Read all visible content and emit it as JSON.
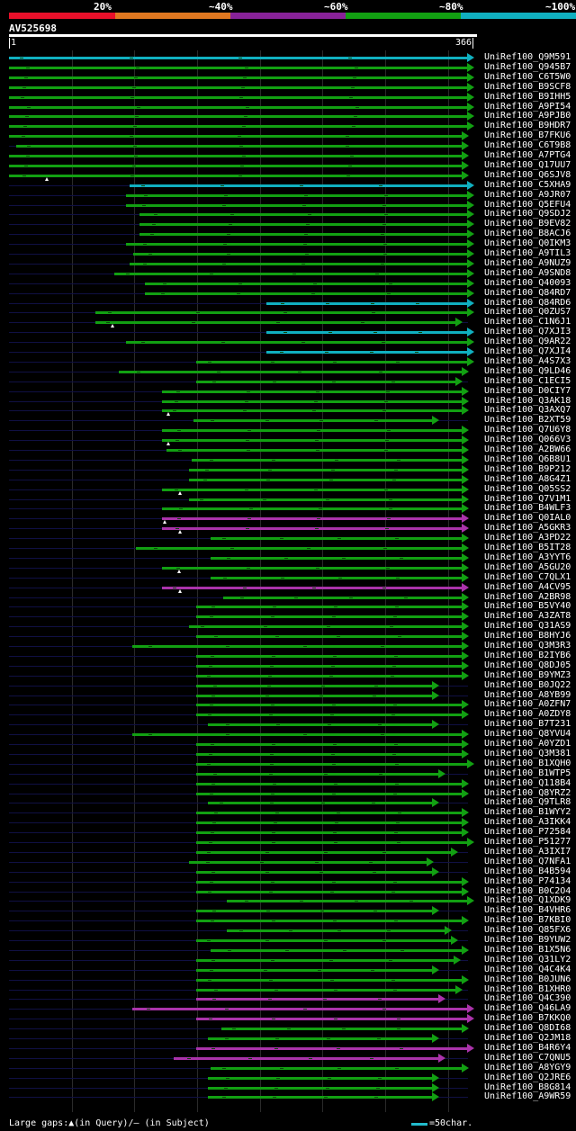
{
  "legend": [
    {
      "label": "20%",
      "color": "#e8102a"
    },
    {
      "label": "~40%",
      "color": "#e07820"
    },
    {
      "label": "~60%",
      "color": "#882299"
    },
    {
      "label": "~80%",
      "color": "#12a012"
    },
    {
      "label": "~100%",
      "color": "#10b0c0"
    }
  ],
  "query": {
    "name": "AV525698",
    "start": "1",
    "end": "366",
    "length": 366
  },
  "footer": {
    "gaps_text": "Large gaps:▲(in Query)/– (in Subject)",
    "scale_text": "=50char."
  },
  "colors": {
    "green": "#12a012",
    "cyan": "#10b0c0",
    "purple": "#aa33aa",
    "guide": "#101044"
  },
  "hits": [
    {
      "label": "UniRef100_Q9M591",
      "start": 1,
      "end": 366,
      "color": "cyan"
    },
    {
      "label": "UniRef100_Q945B7",
      "start": 1,
      "end": 366,
      "color": "green"
    },
    {
      "label": "UniRef100_C6T5W0",
      "start": 1,
      "end": 366,
      "color": "green"
    },
    {
      "label": "UniRef100_B9SCF8",
      "start": 1,
      "end": 366,
      "color": "green"
    },
    {
      "label": "UniRef100_B9IHH5",
      "start": 1,
      "end": 366,
      "color": "green"
    },
    {
      "label": "UniRef100_A9PI54",
      "start": 1,
      "end": 366,
      "color": "green"
    },
    {
      "label": "UniRef100_A9PJB0",
      "start": 1,
      "end": 366,
      "color": "green"
    },
    {
      "label": "UniRef100_B9HDR7",
      "start": 1,
      "end": 366,
      "color": "green"
    },
    {
      "label": "UniRef100_B7FKU6",
      "start": 1,
      "end": 362,
      "color": "green"
    },
    {
      "label": "UniRef100_C6T9B8",
      "start": 7,
      "end": 362,
      "color": "green"
    },
    {
      "label": "UniRef100_A7PTG4",
      "start": 1,
      "end": 362,
      "color": "green"
    },
    {
      "label": "UniRef100_Q17UU7",
      "start": 1,
      "end": 362,
      "color": "green"
    },
    {
      "label": "UniRef100_Q6SJV8",
      "start": 1,
      "end": 362,
      "color": "green",
      "gap": 31
    },
    {
      "label": "UniRef100_C5XHA9",
      "start": 97,
      "end": 366,
      "color": "cyan"
    },
    {
      "label": "UniRef100_A9JR07",
      "start": 94,
      "end": 366,
      "color": "green"
    },
    {
      "label": "UniRef100_Q5EFU4",
      "start": 94,
      "end": 366,
      "color": "green"
    },
    {
      "label": "UniRef100_Q9SDJ2",
      "start": 105,
      "end": 366,
      "color": "green"
    },
    {
      "label": "UniRef100_B9EV82",
      "start": 105,
      "end": 366,
      "color": "green"
    },
    {
      "label": "UniRef100_B8ACJ6",
      "start": 105,
      "end": 366,
      "color": "green"
    },
    {
      "label": "UniRef100_Q0IKM3",
      "start": 94,
      "end": 366,
      "color": "green"
    },
    {
      "label": "UniRef100_A9TIL3",
      "start": 100,
      "end": 366,
      "color": "green"
    },
    {
      "label": "UniRef100_A9NUZ9",
      "start": 97,
      "end": 366,
      "color": "green"
    },
    {
      "label": "UniRef100_A9SND8",
      "start": 85,
      "end": 366,
      "color": "green"
    },
    {
      "label": "UniRef100_Q40093",
      "start": 109,
      "end": 366,
      "color": "green"
    },
    {
      "label": "UniRef100_Q84RD7",
      "start": 109,
      "end": 366,
      "color": "green"
    },
    {
      "label": "UniRef100_Q84RD6",
      "start": 206,
      "end": 366,
      "color": "cyan"
    },
    {
      "label": "UniRef100_Q0ZUS7",
      "start": 70,
      "end": 366,
      "color": "green"
    },
    {
      "label": "UniRef100_C1N6J1",
      "start": 70,
      "end": 357,
      "color": "green",
      "gap": 83
    },
    {
      "label": "UniRef100_Q7XJI3",
      "start": 206,
      "end": 366,
      "color": "cyan"
    },
    {
      "label": "UniRef100_Q9AR22",
      "start": 94,
      "end": 366,
      "color": "green"
    },
    {
      "label": "UniRef100_Q7XJI4",
      "start": 206,
      "end": 366,
      "color": "cyan"
    },
    {
      "label": "UniRef100_A4S7X3",
      "start": 150,
      "end": 366,
      "color": "green"
    },
    {
      "label": "UniRef100_Q9LD46",
      "start": 88,
      "end": 362,
      "color": "green"
    },
    {
      "label": "UniRef100_C1ECI5",
      "start": 150,
      "end": 357,
      "color": "green"
    },
    {
      "label": "UniRef100_D0CIY7",
      "start": 123,
      "end": 362,
      "color": "green"
    },
    {
      "label": "UniRef100_Q3AK18",
      "start": 123,
      "end": 362,
      "color": "green"
    },
    {
      "label": "UniRef100_Q3AXQ7",
      "start": 123,
      "end": 362,
      "color": "green",
      "gap": 128
    },
    {
      "label": "UniRef100_B2XT59",
      "start": 148,
      "end": 338,
      "color": "green"
    },
    {
      "label": "UniRef100_Q7U6Y8",
      "start": 123,
      "end": 362,
      "color": "green"
    },
    {
      "label": "UniRef100_Q066V3",
      "start": 123,
      "end": 362,
      "color": "green",
      "gap": 128
    },
    {
      "label": "UniRef100_A2BW66",
      "start": 126,
      "end": 362,
      "color": "green"
    },
    {
      "label": "UniRef100_Q6B8U1",
      "start": 146,
      "end": 362,
      "color": "green"
    },
    {
      "label": "UniRef100_B9P212",
      "start": 144,
      "end": 362,
      "color": "green"
    },
    {
      "label": "UniRef100_A8G4Z1",
      "start": 144,
      "end": 362,
      "color": "green"
    },
    {
      "label": "UniRef100_Q05SS2",
      "start": 123,
      "end": 362,
      "color": "green",
      "gap": 137
    },
    {
      "label": "UniRef100_Q7V1M1",
      "start": 144,
      "end": 362,
      "color": "green"
    },
    {
      "label": "UniRef100_B4WLF3",
      "start": 123,
      "end": 362,
      "color": "green"
    },
    {
      "label": "UniRef100_Q0IAL0",
      "start": 123,
      "end": 362,
      "color": "purple",
      "gap": 125
    },
    {
      "label": "UniRef100_A5GKR3",
      "start": 123,
      "end": 362,
      "color": "purple",
      "gap": 137
    },
    {
      "label": "UniRef100_A3PD22",
      "start": 161,
      "end": 362,
      "color": "green"
    },
    {
      "label": "UniRef100_B5IT28",
      "start": 102,
      "end": 362,
      "color": "green"
    },
    {
      "label": "UniRef100_A3YYT6",
      "start": 161,
      "end": 362,
      "color": "green"
    },
    {
      "label": "UniRef100_A5GU20",
      "start": 123,
      "end": 362,
      "color": "green",
      "gap": 136
    },
    {
      "label": "UniRef100_C7QLX1",
      "start": 161,
      "end": 362,
      "color": "green"
    },
    {
      "label": "UniRef100_A4CV95",
      "start": 123,
      "end": 362,
      "color": "purple",
      "gap": 137
    },
    {
      "label": "UniRef100_A2BR98",
      "start": 171,
      "end": 362,
      "color": "green"
    },
    {
      "label": "UniRef100_B5VY40",
      "start": 150,
      "end": 362,
      "color": "green"
    },
    {
      "label": "UniRef100_A3ZAT8",
      "start": 150,
      "end": 362,
      "color": "green"
    },
    {
      "label": "UniRef100_Q31AS9",
      "start": 144,
      "end": 362,
      "color": "green"
    },
    {
      "label": "UniRef100_B8HYJ6",
      "start": 150,
      "end": 362,
      "color": "green"
    },
    {
      "label": "UniRef100_Q3M3R3",
      "start": 99,
      "end": 362,
      "color": "green"
    },
    {
      "label": "UniRef100_B2IYB6",
      "start": 150,
      "end": 362,
      "color": "green"
    },
    {
      "label": "UniRef100_Q8DJ05",
      "start": 150,
      "end": 362,
      "color": "green"
    },
    {
      "label": "UniRef100_B9YMZ3",
      "start": 150,
      "end": 362,
      "color": "green"
    },
    {
      "label": "UniRef100_B0JQ22",
      "start": 150,
      "end": 338,
      "color": "green"
    },
    {
      "label": "UniRef100_A8YB99",
      "start": 150,
      "end": 338,
      "color": "green"
    },
    {
      "label": "UniRef100_A0ZFN7",
      "start": 150,
      "end": 362,
      "color": "green"
    },
    {
      "label": "UniRef100_A0ZDY8",
      "start": 150,
      "end": 362,
      "color": "green"
    },
    {
      "label": "UniRef100_B7T231",
      "start": 159,
      "end": 338,
      "color": "green"
    },
    {
      "label": "UniRef100_Q8YVU4",
      "start": 99,
      "end": 362,
      "color": "green"
    },
    {
      "label": "UniRef100_A0YZD1",
      "start": 150,
      "end": 362,
      "color": "green"
    },
    {
      "label": "UniRef100_Q3M381",
      "start": 150,
      "end": 362,
      "color": "green"
    },
    {
      "label": "UniRef100_B1XQH0",
      "start": 150,
      "end": 366,
      "color": "green"
    },
    {
      "label": "UniRef100_B1WTP5",
      "start": 150,
      "end": 343,
      "color": "green"
    },
    {
      "label": "UniRef100_Q118B4",
      "start": 150,
      "end": 362,
      "color": "green"
    },
    {
      "label": "UniRef100_Q8YRZ2",
      "start": 150,
      "end": 362,
      "color": "green"
    },
    {
      "label": "UniRef100_Q9TLR8",
      "start": 159,
      "end": 338,
      "color": "green"
    },
    {
      "label": "UniRef100_B1WYY2",
      "start": 150,
      "end": 362,
      "color": "green"
    },
    {
      "label": "UniRef100_A3IKK4",
      "start": 150,
      "end": 362,
      "color": "green"
    },
    {
      "label": "UniRef100_P72584",
      "start": 150,
      "end": 362,
      "color": "green"
    },
    {
      "label": "UniRef100_P51277",
      "start": 150,
      "end": 366,
      "color": "green"
    },
    {
      "label": "UniRef100_A3IXI7",
      "start": 150,
      "end": 353,
      "color": "green"
    },
    {
      "label": "UniRef100_Q7NFA1",
      "start": 144,
      "end": 334,
      "color": "green"
    },
    {
      "label": "UniRef100_B4B594",
      "start": 150,
      "end": 338,
      "color": "green"
    },
    {
      "label": "UniRef100_P74134",
      "start": 150,
      "end": 362,
      "color": "green"
    },
    {
      "label": "UniRef100_B0C2O4",
      "start": 150,
      "end": 362,
      "color": "green"
    },
    {
      "label": "UniRef100_Q1XDK9",
      "start": 174,
      "end": 366,
      "color": "green"
    },
    {
      "label": "UniRef100_B4VHR6",
      "start": 150,
      "end": 338,
      "color": "green"
    },
    {
      "label": "UniRef100_B7KBI0",
      "start": 150,
      "end": 362,
      "color": "green"
    },
    {
      "label": "UniRef100_Q85FX6",
      "start": 174,
      "end": 348,
      "color": "green"
    },
    {
      "label": "UniRef100_B9YUW2",
      "start": 150,
      "end": 353,
      "color": "green"
    },
    {
      "label": "UniRef100_B1X5N6",
      "start": 161,
      "end": 362,
      "color": "green"
    },
    {
      "label": "UniRef100_Q31LY2",
      "start": 150,
      "end": 355,
      "color": "green"
    },
    {
      "label": "UniRef100_Q4C4K4",
      "start": 150,
      "end": 338,
      "color": "green"
    },
    {
      "label": "UniRef100_B0JUN6",
      "start": 150,
      "end": 362,
      "color": "green"
    },
    {
      "label": "UniRef100_B1XHR0",
      "start": 150,
      "end": 357,
      "color": "green"
    },
    {
      "label": "UniRef100_Q4C390",
      "start": 150,
      "end": 343,
      "color": "purple"
    },
    {
      "label": "UniRef100_Q46LA9",
      "start": 99,
      "end": 366,
      "color": "purple"
    },
    {
      "label": "UniRef100_B7KKQ0",
      "start": 150,
      "end": 366,
      "color": "purple"
    },
    {
      "label": "UniRef100_Q8DI68",
      "start": 170,
      "end": 362,
      "color": "green"
    },
    {
      "label": "UniRef100_Q2JM18",
      "start": 159,
      "end": 338,
      "color": "green"
    },
    {
      "label": "UniRef100_B4R6Y4",
      "start": 150,
      "end": 366,
      "color": "purple"
    },
    {
      "label": "UniRef100_C7QNU5",
      "start": 132,
      "end": 343,
      "color": "purple"
    },
    {
      "label": "UniRef100_A8YGY9",
      "start": 161,
      "end": 362,
      "color": "green"
    },
    {
      "label": "UniRef100_Q2JRE6",
      "start": 159,
      "end": 338,
      "color": "green"
    },
    {
      "label": "UniRef100_B8G814",
      "start": 159,
      "end": 338,
      "color": "green"
    },
    {
      "label": "UniRef100_A9WR59",
      "start": 159,
      "end": 338,
      "color": "green"
    }
  ]
}
